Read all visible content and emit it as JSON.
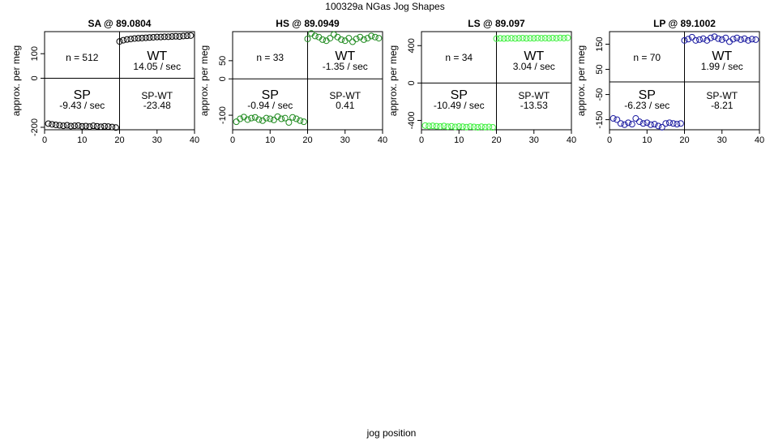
{
  "figure": {
    "title": "100329a   NGas Jog Shapes",
    "xlabel": "jog position"
  },
  "chart_data": [
    {
      "type": "scatter",
      "title": "SA @ 89.0804",
      "ylabel": "approx. per meg",
      "color": "#000000",
      "xlim": [
        0,
        40
      ],
      "ylim": [
        -210,
        190
      ],
      "xticks": [
        0,
        10,
        20,
        30,
        40
      ],
      "yticks": [
        -200,
        0,
        100
      ],
      "split_x": 20,
      "split_y": 0,
      "annotations": {
        "n": "n = 512",
        "wt": "WT",
        "wt_rate": "14.05 / sec",
        "sp": "SP",
        "sp_rate": "-9.43 / sec",
        "spwt": "SP-WT",
        "spwt_val": "-23.48"
      },
      "x": [
        1,
        2,
        3,
        4,
        5,
        6,
        7,
        8,
        9,
        10,
        11,
        12,
        13,
        14,
        15,
        16,
        17,
        18,
        19,
        20,
        21,
        22,
        23,
        24,
        25,
        26,
        27,
        28,
        29,
        30,
        31,
        32,
        33,
        34,
        35,
        36,
        37,
        38,
        39
      ],
      "y": [
        -185,
        -188,
        -190,
        -192,
        -194,
        -192,
        -195,
        -194,
        -193,
        -196,
        -195,
        -197,
        -194,
        -196,
        -198,
        -196,
        -197,
        -199,
        -201,
        150,
        155,
        158,
        160,
        162,
        163,
        164,
        165,
        166,
        167,
        168,
        168,
        169,
        169,
        170,
        171,
        170,
        172,
        173,
        174
      ]
    },
    {
      "type": "scatter",
      "title": "HS @ 89.0949",
      "ylabel": "approx. per meg",
      "color": "#1e8a1e",
      "xlim": [
        0,
        40
      ],
      "ylim": [
        -140,
        130
      ],
      "xticks": [
        0,
        10,
        20,
        30,
        40
      ],
      "yticks": [
        -100,
        0,
        50
      ],
      "split_x": 20,
      "split_y": 0,
      "annotations": {
        "n": "n = 33",
        "wt": "WT",
        "wt_rate": "-1.35 / sec",
        "sp": "SP",
        "sp_rate": "-0.94 / sec",
        "spwt": "SP-WT",
        "spwt_val": "0.41"
      },
      "x": [
        1,
        2,
        3,
        4,
        5,
        6,
        7,
        8,
        9,
        10,
        11,
        12,
        13,
        14,
        15,
        16,
        17,
        18,
        19,
        20,
        21,
        22,
        23,
        24,
        25,
        26,
        27,
        28,
        29,
        30,
        31,
        32,
        33,
        34,
        35,
        36,
        37,
        38,
        39
      ],
      "y": [
        -118,
        -110,
        -105,
        -112,
        -108,
        -106,
        -112,
        -115,
        -108,
        -110,
        -113,
        -104,
        -110,
        -108,
        -120,
        -106,
        -110,
        -115,
        -118,
        110,
        125,
        118,
        115,
        108,
        105,
        112,
        122,
        115,
        108,
        105,
        112,
        102,
        110,
        115,
        108,
        112,
        118,
        115,
        112
      ]
    },
    {
      "type": "scatter",
      "title": "LS @ 89.097",
      "ylabel": "approx. per meg",
      "color": "#3cf03c",
      "xlim": [
        0,
        40
      ],
      "ylim": [
        -500,
        550
      ],
      "xticks": [
        0,
        10,
        20,
        30,
        40
      ],
      "yticks": [
        -400,
        0,
        400
      ],
      "split_x": 20,
      "split_y": 0,
      "annotations": {
        "n": "n = 34",
        "wt": "WT",
        "wt_rate": "3.04 / sec",
        "sp": "SP",
        "sp_rate": "-10.49 / sec",
        "spwt": "SP-WT",
        "spwt_val": "-13.53"
      },
      "x": [
        1,
        2,
        3,
        4,
        5,
        6,
        7,
        8,
        9,
        10,
        11,
        12,
        13,
        14,
        15,
        16,
        17,
        18,
        19,
        20,
        21,
        22,
        23,
        24,
        25,
        26,
        27,
        28,
        29,
        30,
        31,
        32,
        33,
        34,
        35,
        36,
        37,
        38,
        39
      ],
      "y": [
        -455,
        -460,
        -458,
        -462,
        -465,
        -460,
        -468,
        -463,
        -470,
        -465,
        -468,
        -472,
        -466,
        -470,
        -474,
        -468,
        -472,
        -470,
        -474,
        475,
        478,
        476,
        478,
        480,
        477,
        479,
        481,
        478,
        480,
        479,
        482,
        480,
        481,
        479,
        482,
        480,
        483,
        481,
        484
      ]
    },
    {
      "type": "scatter",
      "title": "LP @ 89.1002",
      "ylabel": "approx. per meg",
      "color": "#1a1aa0",
      "xlim": [
        0,
        40
      ],
      "ylim": [
        -190,
        200
      ],
      "xticks": [
        0,
        10,
        20,
        30,
        40
      ],
      "yticks": [
        -150,
        -50,
        50,
        150
      ],
      "split_x": 20,
      "split_y": 0,
      "annotations": {
        "n": "n = 70",
        "wt": "WT",
        "wt_rate": "1.99 / sec",
        "sp": "SP",
        "sp_rate": "-6.23 / sec",
        "spwt": "SP-WT",
        "spwt_val": "-8.21"
      },
      "x": [
        1,
        2,
        3,
        4,
        5,
        6,
        7,
        8,
        9,
        10,
        11,
        12,
        13,
        14,
        15,
        16,
        17,
        18,
        19,
        20,
        21,
        22,
        23,
        24,
        25,
        26,
        27,
        28,
        29,
        30,
        31,
        32,
        33,
        34,
        35,
        36,
        37,
        38,
        39
      ],
      "y": [
        -145,
        -150,
        -165,
        -170,
        -162,
        -168,
        -145,
        -158,
        -165,
        -162,
        -170,
        -168,
        -175,
        -180,
        -165,
        -162,
        -165,
        -168,
        -165,
        165,
        170,
        178,
        165,
        168,
        172,
        165,
        175,
        180,
        172,
        168,
        175,
        160,
        170,
        175,
        168,
        172,
        165,
        170,
        168
      ]
    }
  ]
}
